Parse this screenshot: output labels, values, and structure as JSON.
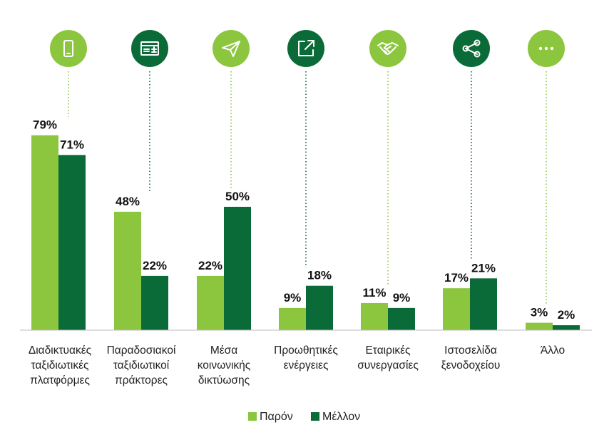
{
  "chart_data": {
    "type": "bar",
    "categories": [
      [
        "Διαδικτυακές",
        "ταξιδιωτικές",
        "πλατφόρμες"
      ],
      [
        "Παραδοσιακοί",
        "ταξιδιωτικοί",
        "πράκτορες"
      ],
      [
        "Μέσα",
        "κοινωνικής",
        "δικτύωσης"
      ],
      [
        "Προωθητικές",
        "ενέργειες"
      ],
      [
        "Εταιρικές",
        "συνεργασίες"
      ],
      [
        "Ιστοσελίδα",
        "ξενοδοχείου"
      ],
      [
        "Άλλο"
      ]
    ],
    "series": [
      {
        "name": "Παρόν",
        "values": [
          79,
          48,
          22,
          9,
          11,
          17,
          3
        ],
        "color": "#8cc63f"
      },
      {
        "name": "Μέλλον",
        "values": [
          71,
          22,
          50,
          18,
          9,
          21,
          2
        ],
        "color": "#0b6b38"
      }
    ],
    "value_suffix": "%",
    "ylim": [
      0,
      100
    ],
    "grid": false,
    "legend_position": "bottom-center",
    "icons": [
      {
        "name": "smartphone-icon",
        "color": "#8cc63f"
      },
      {
        "name": "calculator-card-icon",
        "color": "#0b6b38"
      },
      {
        "name": "paper-plane-icon",
        "color": "#8cc63f"
      },
      {
        "name": "external-link-icon",
        "color": "#0b6b38"
      },
      {
        "name": "handshake-icon",
        "color": "#8cc63f"
      },
      {
        "name": "share-icon",
        "color": "#0b6b38"
      },
      {
        "name": "more-dots-icon",
        "color": "#8cc63f"
      }
    ]
  }
}
